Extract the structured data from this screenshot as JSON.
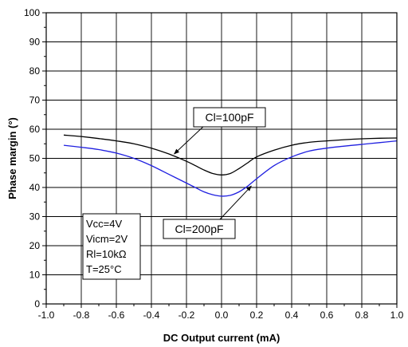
{
  "chart_data": {
    "type": "line",
    "xlabel": "DC Output current (mA)",
    "ylabel": "Phase margin (°)",
    "xlim": [
      -1.0,
      1.0
    ],
    "ylim": [
      0,
      100
    ],
    "xticks": [
      "-1.0",
      "-0.8",
      "-0.6",
      "-0.4",
      "-0.2",
      "0.0",
      "0.2",
      "0.4",
      "0.6",
      "0.8",
      "1.0"
    ],
    "yticks": [
      "0",
      "10",
      "20",
      "30",
      "40",
      "50",
      "60",
      "70",
      "80",
      "90",
      "100"
    ],
    "grid": true,
    "series": [
      {
        "name": "Cl=100pF",
        "color": "#000000",
        "x": [
          -0.9,
          -0.8,
          -0.7,
          -0.6,
          -0.5,
          -0.4,
          -0.3,
          -0.2,
          -0.15,
          -0.1,
          -0.05,
          0.0,
          0.05,
          0.1,
          0.15,
          0.2,
          0.3,
          0.4,
          0.5,
          0.6,
          0.7,
          0.8,
          0.9,
          1.0
        ],
        "y": [
          58.0,
          57.5,
          56.8,
          56.0,
          55.0,
          53.5,
          51.5,
          49.0,
          47.5,
          46.0,
          44.8,
          44.3,
          44.8,
          46.5,
          48.5,
          50.5,
          52.8,
          54.5,
          55.5,
          56.0,
          56.4,
          56.7,
          56.9,
          57.0
        ]
      },
      {
        "name": "Cl=200pF",
        "color": "#1f1fe0",
        "x": [
          -0.9,
          -0.8,
          -0.7,
          -0.6,
          -0.5,
          -0.4,
          -0.3,
          -0.2,
          -0.15,
          -0.1,
          -0.05,
          0.0,
          0.05,
          0.1,
          0.15,
          0.2,
          0.3,
          0.4,
          0.5,
          0.6,
          0.7,
          0.8,
          0.9,
          1.0
        ],
        "y": [
          54.5,
          53.8,
          53.0,
          51.8,
          50.0,
          47.5,
          44.5,
          41.5,
          40.0,
          38.5,
          37.5,
          37.0,
          37.3,
          38.5,
          40.5,
          43.0,
          47.5,
          50.5,
          52.5,
          53.5,
          54.2,
          54.8,
          55.4,
          56.0
        ]
      }
    ],
    "annotations": [
      {
        "text": "Cl=100pF",
        "series": 0
      },
      {
        "text": "Cl=200pF",
        "series": 1
      }
    ],
    "conditions_box": [
      "Vcc=4V",
      "Vicm=2V",
      "Rl=10kΩ",
      "T=25°C"
    ]
  }
}
